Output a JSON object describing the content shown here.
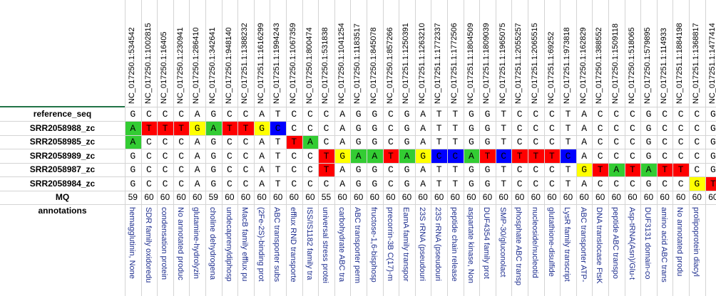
{
  "colors": {
    "A": "#33cc33",
    "T": "#ff0000",
    "G": "#ffff00",
    "C": "#0000ff",
    "annotation_text": "#1f2f8f",
    "grid": "#d4d4d4"
  },
  "columns": [
    "NC_017250.1:534542",
    "NC_017250.1:1002815",
    "NC_017250.1:16405",
    "NC_017250.1:230941",
    "NC_017250.1:286410",
    "NC_017250.1:342641",
    "NC_017250.1:948140",
    "NC_017251.1:1388232",
    "NC_017251.1:1616299",
    "NC_017251.1:1994243",
    "NC_017250.1:1067359",
    "NC_017250.1:800474",
    "NC_017250.1:531838",
    "NC_017250.1:1041254",
    "NC_017250.1:1183517",
    "NC_017250.1:845078",
    "NC_017250.1:857266",
    "NC_017251.1:1250391",
    "NC_017251.1:1263210",
    "NC_017251.1:1772337",
    "NC_017251.1:1772506",
    "NC_017251.1:1804509",
    "NC_017251.1:1809039",
    "NC_017251.1:1965075",
    "NC_017251.1:2055257",
    "NC_017251.1:2065515",
    "NC_017251.1:69252",
    "NC_017251.1:973818",
    "NC_017250.1:162829",
    "NC_017250.1:388552",
    "NC_017250.1:1509118",
    "NC_017250.1:518065",
    "NC_017250.1:579895",
    "NC_017251.1:114933",
    "NC_017251.1:1884198",
    "NC_017251.1:1368817",
    "NC_017251.1:1477414"
  ],
  "row_labels": {
    "reference": "reference_seq",
    "samples": [
      "SRR2058988_zc",
      "SRR2058985_zc",
      "SRR2058989_zc",
      "SRR2058987_zc",
      "SRR2058984_zc"
    ],
    "mq": "MQ",
    "annotations": "annotations"
  },
  "reference_seq": [
    "G",
    "C",
    "C",
    "C",
    "A",
    "G",
    "C",
    "C",
    "A",
    "T",
    "C",
    "C",
    "C",
    "A",
    "G",
    "G",
    "C",
    "G",
    "A",
    "T",
    "T",
    "G",
    "G",
    "T",
    "C",
    "C",
    "C",
    "T",
    "A",
    "C",
    "C",
    "C",
    "G",
    "C",
    "C",
    "C",
    "G"
  ],
  "samples": [
    [
      "A",
      "T",
      "T",
      "T",
      "G",
      "A",
      "T",
      "T",
      "G",
      "C",
      "C",
      "C",
      "C",
      "A",
      "G",
      "G",
      "C",
      "G",
      "A",
      "T",
      "T",
      "G",
      "G",
      "T",
      "C",
      "C",
      "C",
      "T",
      "A",
      "C",
      "C",
      "C",
      "G",
      "C",
      "C",
      "C",
      "G"
    ],
    [
      "A",
      "C",
      "C",
      "C",
      "A",
      "G",
      "C",
      "C",
      "A",
      "T",
      "T",
      "A",
      "C",
      "A",
      "G",
      "G",
      "C",
      "G",
      "A",
      "T",
      "T",
      "G",
      "G",
      "T",
      "C",
      "C",
      "C",
      "T",
      "A",
      "C",
      "C",
      "C",
      "G",
      "C",
      "C",
      "C",
      "G"
    ],
    [
      "G",
      "C",
      "C",
      "C",
      "A",
      "G",
      "C",
      "C",
      "A",
      "T",
      "C",
      "C",
      "T",
      "G",
      "A",
      "A",
      "T",
      "A",
      "G",
      "C",
      "C",
      "A",
      "T",
      "C",
      "T",
      "T",
      "T",
      "C",
      "A",
      "C",
      "C",
      "C",
      "G",
      "C",
      "C",
      "C",
      "G"
    ],
    [
      "G",
      "C",
      "C",
      "C",
      "A",
      "G",
      "C",
      "C",
      "A",
      "T",
      "C",
      "C",
      "T",
      "A",
      "G",
      "G",
      "C",
      "G",
      "A",
      "T",
      "T",
      "G",
      "G",
      "T",
      "C",
      "C",
      "C",
      "T",
      "G",
      "T",
      "A",
      "T",
      "A",
      "T",
      "T",
      "C",
      "G"
    ],
    [
      "G",
      "C",
      "C",
      "C",
      "A",
      "G",
      "C",
      "C",
      "A",
      "T",
      "C",
      "C",
      "C",
      "A",
      "G",
      "G",
      "C",
      "G",
      "A",
      "T",
      "T",
      "G",
      "G",
      "T",
      "C",
      "C",
      "C",
      "T",
      "A",
      "C",
      "C",
      "C",
      "G",
      "C",
      "C",
      "G",
      "T"
    ]
  ],
  "highlights": [
    [
      true,
      true,
      true,
      true,
      true,
      true,
      true,
      true,
      true,
      true,
      false,
      false,
      false,
      false,
      false,
      false,
      false,
      false,
      false,
      false,
      false,
      false,
      false,
      false,
      false,
      false,
      false,
      false,
      false,
      false,
      false,
      false,
      false,
      false,
      false,
      false,
      false
    ],
    [
      true,
      false,
      false,
      false,
      false,
      false,
      false,
      false,
      false,
      false,
      true,
      true,
      false,
      false,
      false,
      false,
      false,
      false,
      false,
      false,
      false,
      false,
      false,
      false,
      false,
      false,
      false,
      false,
      false,
      false,
      false,
      false,
      false,
      false,
      false,
      false,
      false
    ],
    [
      false,
      false,
      false,
      false,
      false,
      false,
      false,
      false,
      false,
      false,
      false,
      false,
      true,
      true,
      true,
      true,
      true,
      true,
      true,
      true,
      true,
      true,
      true,
      true,
      true,
      true,
      true,
      true,
      false,
      false,
      false,
      false,
      false,
      false,
      false,
      false,
      false
    ],
    [
      false,
      false,
      false,
      false,
      false,
      false,
      false,
      false,
      false,
      false,
      false,
      false,
      true,
      false,
      false,
      false,
      false,
      false,
      false,
      false,
      false,
      false,
      false,
      false,
      false,
      false,
      false,
      false,
      true,
      true,
      true,
      true,
      true,
      true,
      true,
      false,
      false
    ],
    [
      false,
      false,
      false,
      false,
      false,
      false,
      false,
      false,
      false,
      false,
      false,
      false,
      false,
      false,
      false,
      false,
      false,
      false,
      false,
      false,
      false,
      false,
      false,
      false,
      false,
      false,
      false,
      false,
      false,
      false,
      false,
      false,
      false,
      false,
      false,
      true,
      true
    ]
  ],
  "mq": [
    "59",
    "60",
    "60",
    "60",
    "60",
    "59",
    "60",
    "60",
    "60",
    "60",
    "60",
    "60",
    "55",
    "60",
    "60",
    "60",
    "60",
    "60",
    "60",
    "60",
    "60",
    "60",
    "60",
    "60",
    "60",
    "60",
    "60",
    "60",
    "60",
    "60",
    "60",
    "60",
    "60",
    "60",
    "60",
    "60",
    "60"
  ],
  "annotations": [
    "hemagglutinin, None",
    "SDR family oxidoredu",
    "condensation protein",
    "No annotated produc",
    "glutamine-hydrolyzin",
    "choline dehydrogena",
    "undecaprenyldiphosp",
    "MacB family efflux pu",
    "(2Fe-2S)-binding prot",
    "ABC transporter subs",
    "efflux RND transporte",
    "ISS/IS1182 family tra",
    "universal stress protei",
    "carbohydrate ABC tra",
    "ABC transporter perm",
    "fructose-1,6-bisphosp",
    "precorrin-3B C(17)-m",
    "EamA family transpor",
    "23S rRNA (pseudouri",
    "23S rRNA (pseudouri",
    "peptide chain release",
    "aspartate kinase, Non",
    "DUF4354 family prot",
    "SMP-30/gluconolact",
    "phosphate ABC transp",
    "nucleoside/nucleotid",
    "glutathione-disulfide",
    "LysR family transcript",
    "ABC transporter ATP-",
    "DNA translocase FtsK",
    "peptide ABC transpo",
    "Asp-tRNA(Asn)/Glu-t",
    "DUF3131 domain-co",
    "amino acid ABC trans",
    "No annotated produ",
    "prolipoprotein diacyl",
    ""
  ]
}
